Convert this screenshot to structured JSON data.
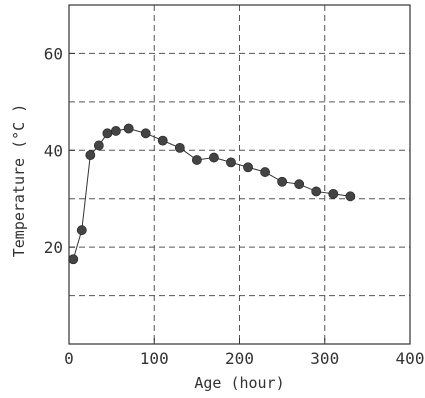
{
  "chart_data": {
    "type": "line",
    "title": "",
    "xlabel": "Age (hour)",
    "ylabel": "Temperature (°C )",
    "xlim": [
      0,
      400
    ],
    "ylim": [
      0,
      70
    ],
    "xticks": [
      0,
      100,
      200,
      300,
      400
    ],
    "xtick_labels": [
      "0",
      "100",
      "200",
      "300",
      "400"
    ],
    "yticks": [
      20,
      40,
      60
    ],
    "ytick_labels": [
      "20",
      "40",
      "60"
    ],
    "grid": true,
    "grid_x": [
      100,
      200,
      300
    ],
    "grid_y": [
      10,
      20,
      30,
      40,
      50,
      60
    ],
    "legend": "none",
    "colors": {
      "line": "#333333",
      "marker": "#444444",
      "grid": "#555555"
    },
    "series": [
      {
        "x": [
          5,
          15,
          25,
          35,
          45,
          55,
          70,
          90,
          110,
          130,
          150,
          170,
          190,
          210,
          230,
          250,
          270,
          290,
          310,
          330
        ],
        "y": [
          17.5,
          23.5,
          39,
          41,
          43.5,
          44,
          44.5,
          43.5,
          42,
          40.5,
          38,
          38.5,
          37.5,
          36.5,
          35.5,
          33.5,
          33,
          31.5,
          31,
          30.5
        ]
      }
    ]
  }
}
